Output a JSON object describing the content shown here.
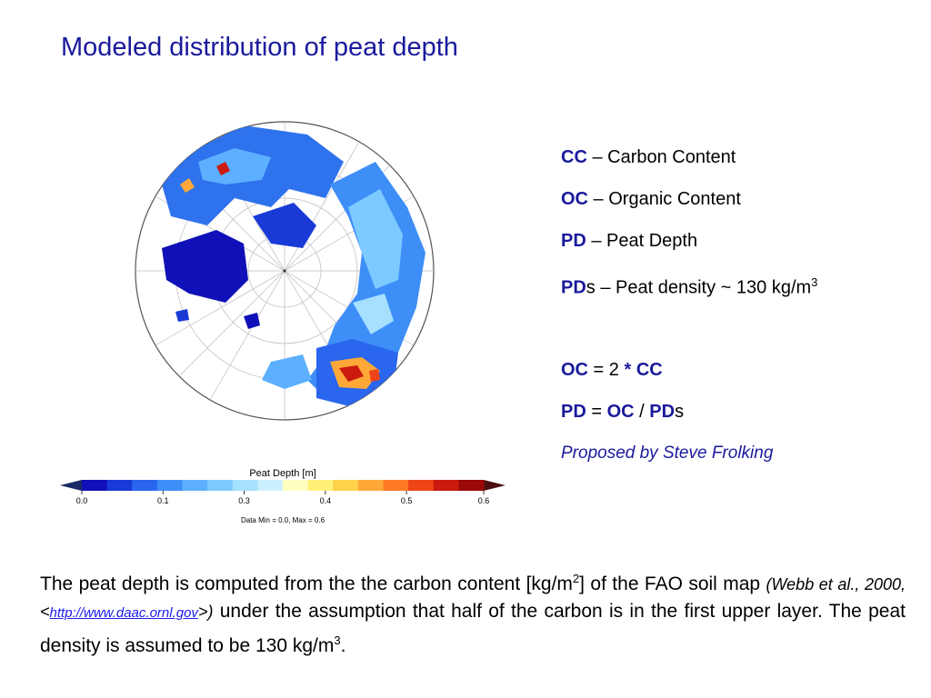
{
  "title": "Modeled distribution of peat depth",
  "map": {
    "legend_title": "Peat Depth [m]",
    "ticks": [
      "0.0",
      "0.1",
      "0.3",
      "0.4",
      "0.5",
      "0.6"
    ],
    "data_range": "Data Min = 0.0, Max = 0.6",
    "colors": [
      "#1010b8",
      "#1a3ad8",
      "#2a66ee",
      "#3e8ef8",
      "#5cb0ff",
      "#7ccaff",
      "#a6e0ff",
      "#cdf0ff",
      "#ffffc0",
      "#fff07a",
      "#ffd24a",
      "#ffa838",
      "#ff7a26",
      "#ee4418",
      "#cc1a10",
      "#9a0808"
    ]
  },
  "definitions": {
    "cc_abbr": "CC",
    "cc_text": " – Carbon Content",
    "oc_abbr": "OC",
    "oc_text": " – Organic Content",
    "pd_abbr": "PD",
    "pd_text": " – Peat Depth",
    "pds_abbr": "PD",
    "pds_s": "s",
    "pds_text": " – Peat density ~ 130 kg/m",
    "pds_sup": "3"
  },
  "formulas": {
    "f1_a": "OC",
    "f1_eq": " = 2 ",
    "f1_star": "*",
    "f1_b": " CC",
    "f2_a": "PD",
    "f2_eq": " = ",
    "f2_b": "OC",
    "f2_slash": " / ",
    "f2_c": "PD",
    "f2_s": "s"
  },
  "proposed": "Proposed by Steve Frolking",
  "paragraph": {
    "p1": "The peat depth is computed from the the carbon content [kg/m",
    "sup1": "2",
    "p2": "] of the FAO soil map ",
    "cite": "(Webb et al., 2000, <",
    "link": "http://www.daac.ornl.gov",
    "cite_end": ">)",
    "p3": " under the assumption that half of the carbon is in the first upper layer. The peat density is assumed to be 130 kg/m",
    "sup2": "3",
    "p4": "."
  }
}
